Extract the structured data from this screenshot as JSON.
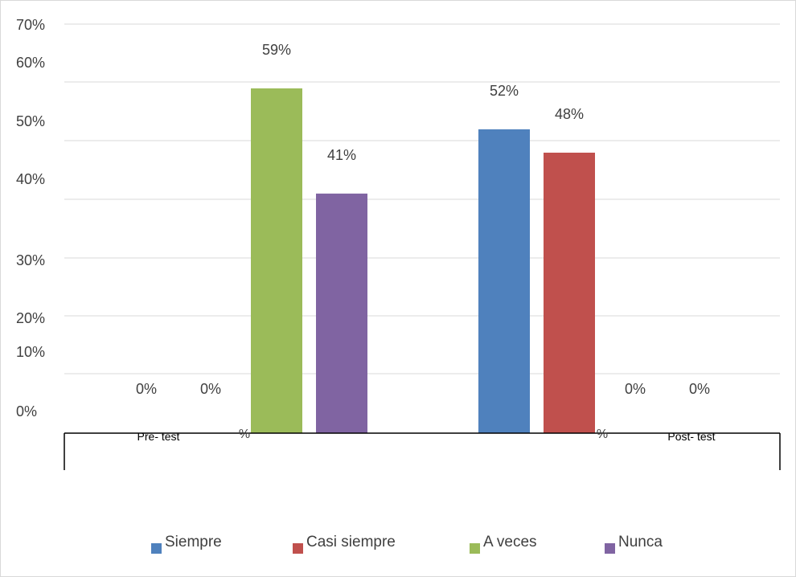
{
  "chart_data": {
    "type": "bar",
    "categories": [
      "Pre- test",
      "Post- test"
    ],
    "series": [
      {
        "name": "Siempre",
        "color": "#4f81bd",
        "values": [
          0,
          52
        ],
        "labels": [
          "0%",
          "52%"
        ]
      },
      {
        "name": "Casi siempre",
        "color": "#c0504d",
        "values": [
          0,
          48
        ],
        "labels": [
          "0%",
          "48%"
        ]
      },
      {
        "name": "A veces",
        "color": "#9bbb59",
        "values": [
          59,
          0
        ],
        "labels": [
          "59%",
          "0%"
        ]
      },
      {
        "name": "Nunca",
        "color": "#8064a2",
        "values": [
          41,
          0
        ],
        "labels": [
          "41%",
          "0%"
        ]
      }
    ],
    "y_tick_labels": [
      "70%",
      "60%",
      "50%",
      "40%",
      "30%",
      "20%",
      "10%",
      "0%"
    ],
    "ylim": [
      0,
      70
    ],
    "stray_labels": [
      "%",
      "%"
    ],
    "grid": true,
    "legend_position": "bottom"
  }
}
